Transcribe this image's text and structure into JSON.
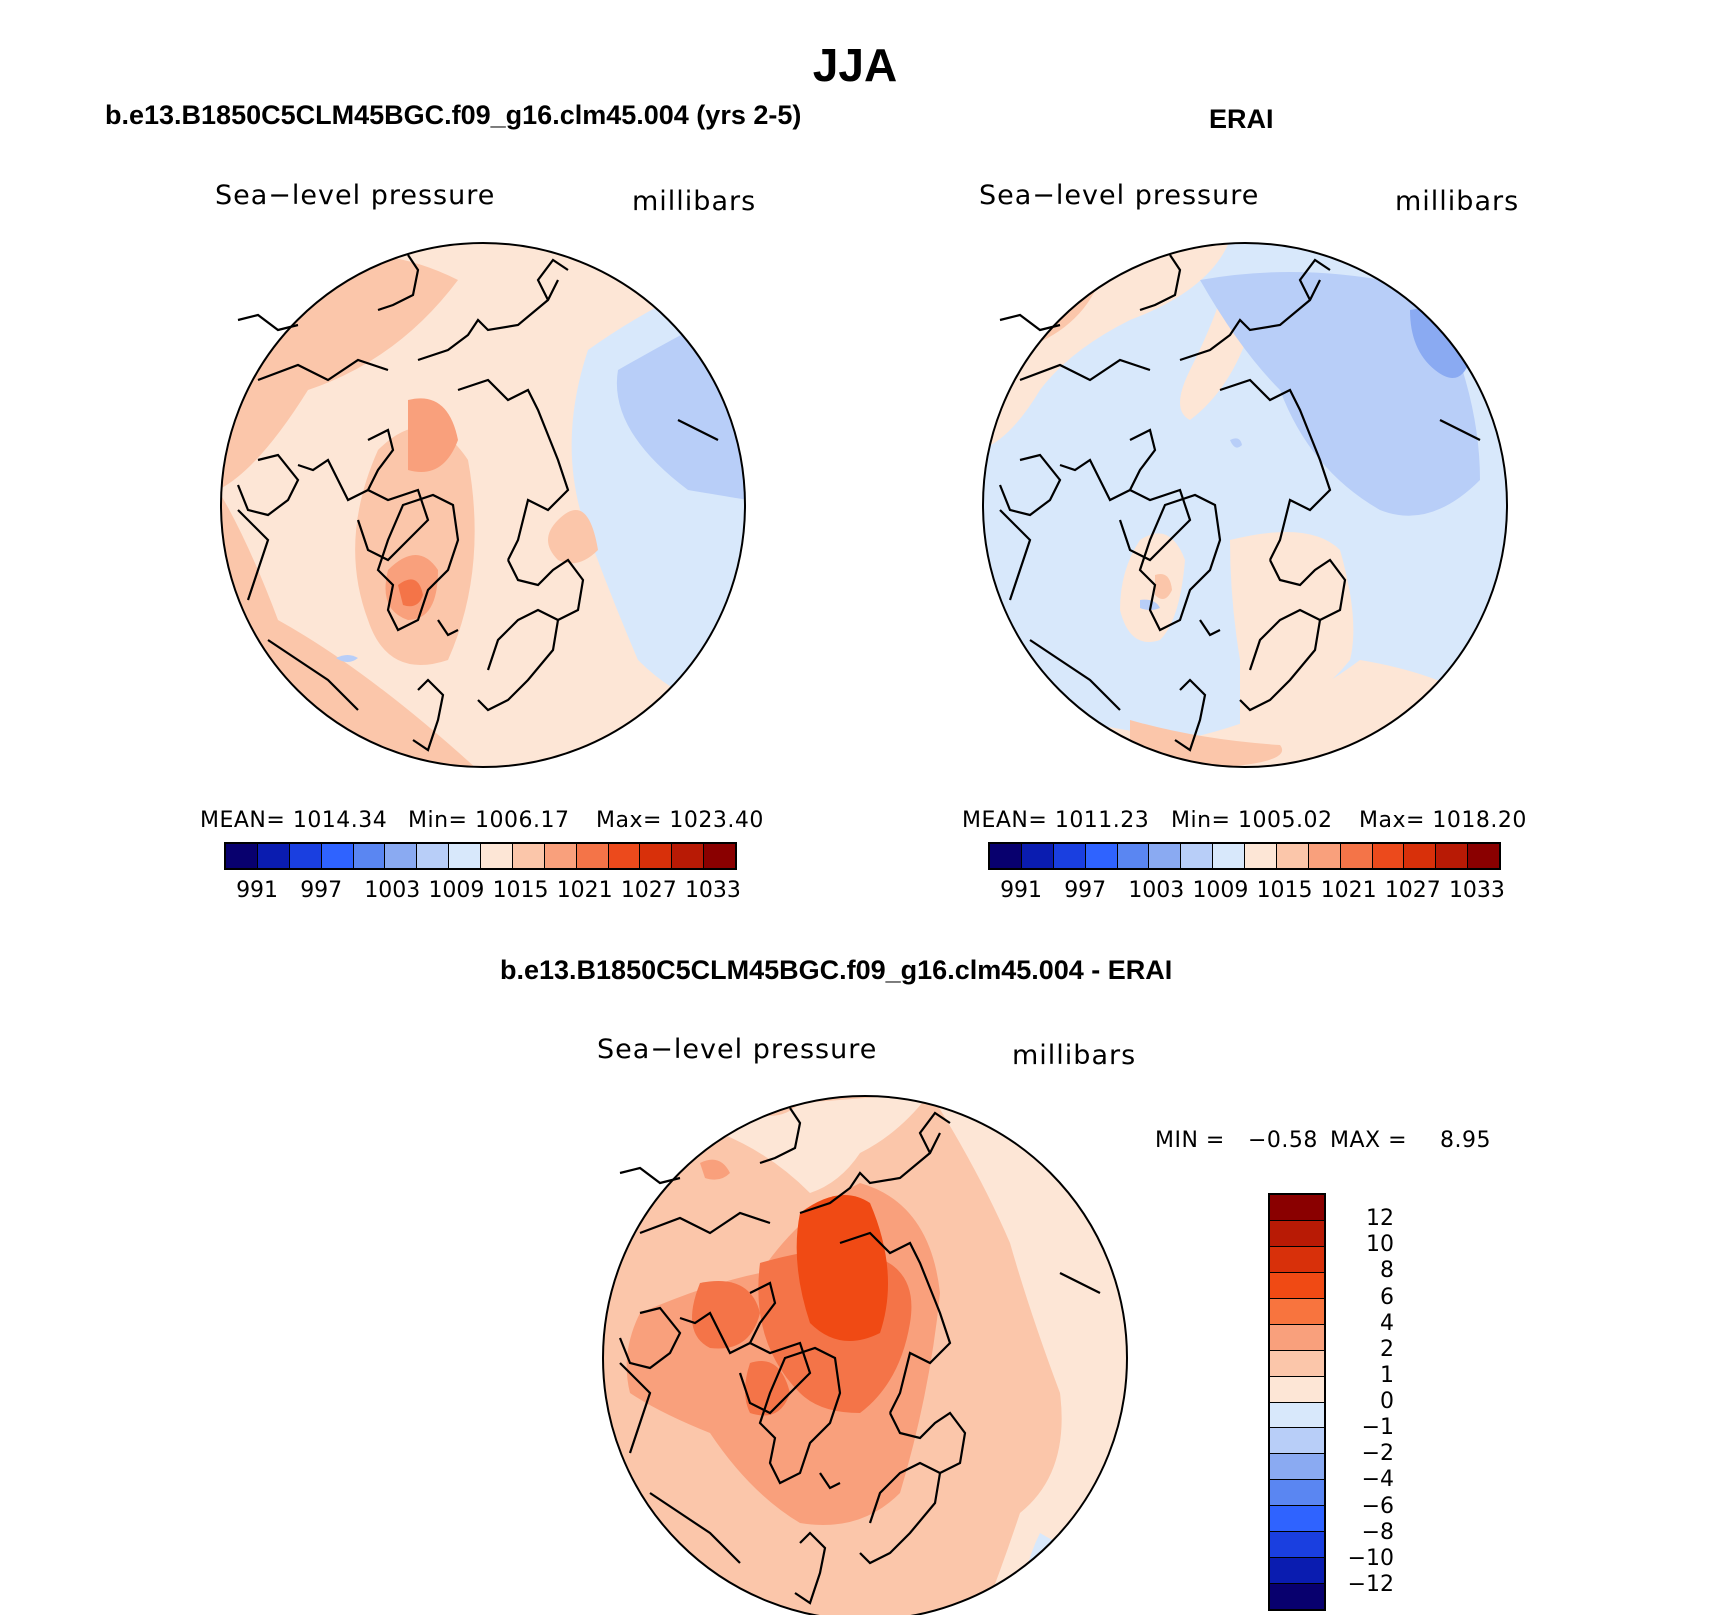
{
  "title": "JJA",
  "panels": {
    "model": {
      "title": "b.e13.B1850C5CLM45BGC.f09_g16.clm45.004 (yrs 2-5)",
      "variable": "Sea−level pressure",
      "units": "millibars",
      "mean_label": "MEAN= 1014.34",
      "min_label": "Min= 1006.17",
      "max_label": "Max= 1023.40"
    },
    "obs": {
      "title": "ERAI",
      "variable": "Sea−level pressure",
      "units": "millibars",
      "mean_label": "MEAN= 1011.23",
      "min_label": "Min= 1005.02",
      "max_label": "Max= 1018.20"
    },
    "diff": {
      "title": "b.e13.B1850C5CLM45BGC.f09_g16.clm45.004 - ERAI",
      "variable": "Sea−level pressure",
      "units": "millibars",
      "min_label": "MIN =",
      "min_value": "−0.58",
      "max_label": "MAX =",
      "max_value": "8.95"
    }
  },
  "abs_colorbar": {
    "colors": [
      "#08006e",
      "#0a1cb0",
      "#1a3fe0",
      "#2f63ff",
      "#5a86f2",
      "#8aaaf2",
      "#b8cef8",
      "#d8e8fb",
      "#fde6d6",
      "#fbc6aa",
      "#f9a07c",
      "#f47448",
      "#ec4a1c",
      "#d8300a",
      "#b81a05",
      "#8a0000"
    ],
    "ticks": [
      "991",
      "997",
      "1003",
      "1009",
      "1015",
      "1021",
      "1027",
      "1033"
    ]
  },
  "diff_colorbar": {
    "colors_top_to_bottom": [
      "#8a0000",
      "#b81a05",
      "#d8300a",
      "#f04a14",
      "#f8743e",
      "#f9a07c",
      "#fbc6aa",
      "#fde6d6",
      "#d8e8fb",
      "#b8cef8",
      "#8aaaf2",
      "#5a86f2",
      "#2f63ff",
      "#1a3fe0",
      "#0a1cb0",
      "#08006e"
    ],
    "ticks": [
      "12",
      "10",
      "8",
      "6",
      "4",
      "2",
      "1",
      "0",
      "−1",
      "−2",
      "−4",
      "−6",
      "−8",
      "−10",
      "−12"
    ]
  }
}
